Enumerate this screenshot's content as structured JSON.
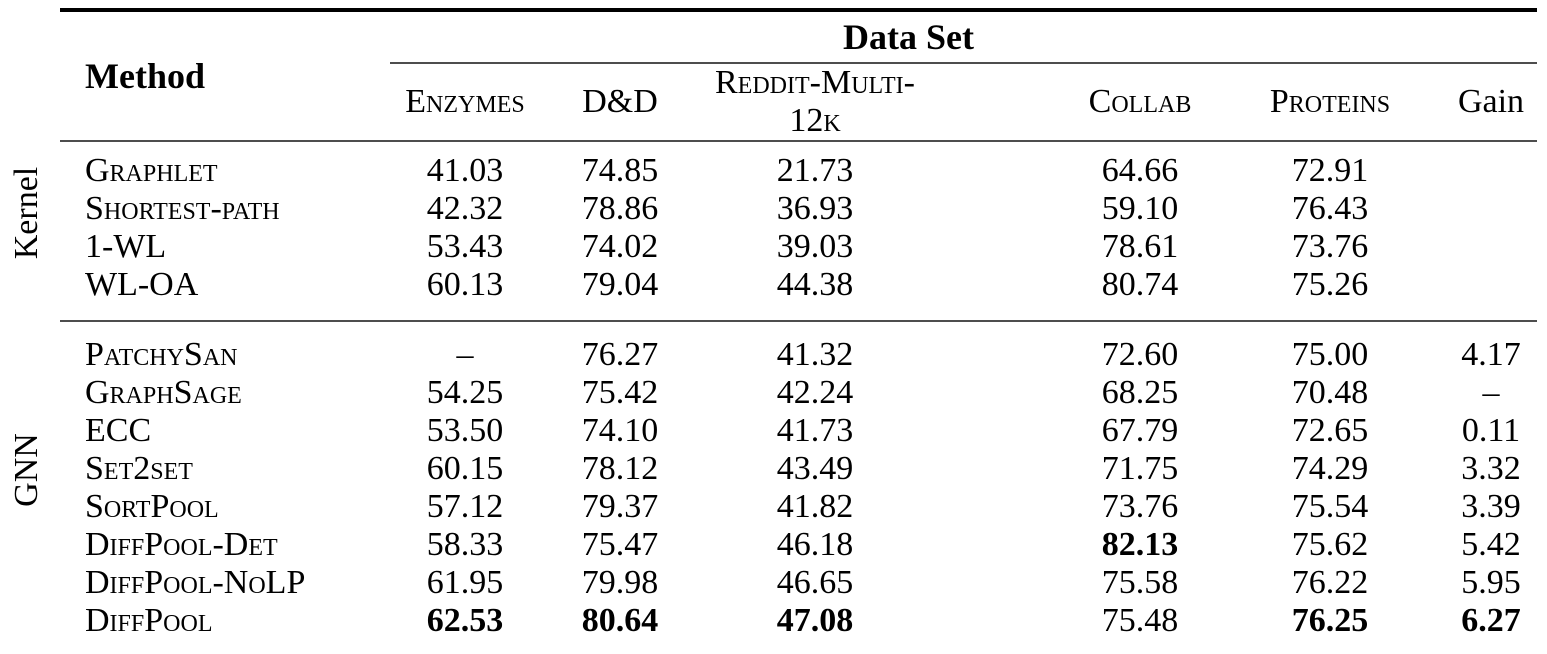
{
  "page": {
    "background": "#ffffff",
    "text_color": "#000000",
    "rule_color_heavy": "#000000",
    "rule_color_light": "#4d4d4d"
  },
  "table": {
    "header": {
      "method_label": "Method",
      "dataset_group_label": "Data Set"
    },
    "columns": [
      "Enzymes",
      "D&D",
      "Reddit-Multi-12k",
      "Collab",
      "Proteins",
      "Gain"
    ],
    "groups": [
      {
        "label": "Kernel",
        "rows": [
          {
            "method": "Graphlet",
            "values": [
              "41.03",
              "74.85",
              "21.73",
              "64.66",
              "72.91",
              ""
            ],
            "bold_cols": []
          },
          {
            "method": "Shortest-path",
            "values": [
              "42.32",
              "78.86",
              "36.93",
              "59.10",
              "76.43",
              ""
            ],
            "bold_cols": []
          },
          {
            "method": "1-WL",
            "values": [
              "53.43",
              "74.02",
              "39.03",
              "78.61",
              "73.76",
              ""
            ],
            "bold_cols": []
          },
          {
            "method": "WL-OA",
            "values": [
              "60.13",
              "79.04",
              "44.38",
              "80.74",
              "75.26",
              ""
            ],
            "bold_cols": []
          }
        ]
      },
      {
        "label": "GNN",
        "rows": [
          {
            "method": "PatchySan",
            "values": [
              "–",
              "76.27",
              "41.32",
              "72.60",
              "75.00",
              "4.17"
            ],
            "bold_cols": []
          },
          {
            "method": "GraphSage",
            "values": [
              "54.25",
              "75.42",
              "42.24",
              "68.25",
              "70.48",
              "–"
            ],
            "bold_cols": []
          },
          {
            "method": "ECC",
            "values": [
              "53.50",
              "74.10",
              "41.73",
              "67.79",
              "72.65",
              "0.11"
            ],
            "bold_cols": []
          },
          {
            "method": "Set2set",
            "values": [
              "60.15",
              "78.12",
              "43.49",
              "71.75",
              "74.29",
              "3.32"
            ],
            "bold_cols": []
          },
          {
            "method": "SortPool",
            "values": [
              "57.12",
              "79.37",
              "41.82",
              "73.76",
              "75.54",
              "3.39"
            ],
            "bold_cols": []
          },
          {
            "method": "DiffPool-Det",
            "values": [
              "58.33",
              "75.47",
              "46.18",
              "82.13",
              "75.62",
              "5.42"
            ],
            "bold_cols": [
              3
            ]
          },
          {
            "method": "DiffPool-NoLP",
            "values": [
              "61.95",
              "79.98",
              "46.65",
              "75.58",
              "76.22",
              "5.95"
            ],
            "bold_cols": []
          },
          {
            "method": "DiffPool",
            "values": [
              "62.53",
              "80.64",
              "47.08",
              "75.48",
              "76.25",
              "6.27"
            ],
            "bold_cols": [
              0,
              1,
              2,
              4,
              5
            ]
          }
        ]
      }
    ]
  }
}
